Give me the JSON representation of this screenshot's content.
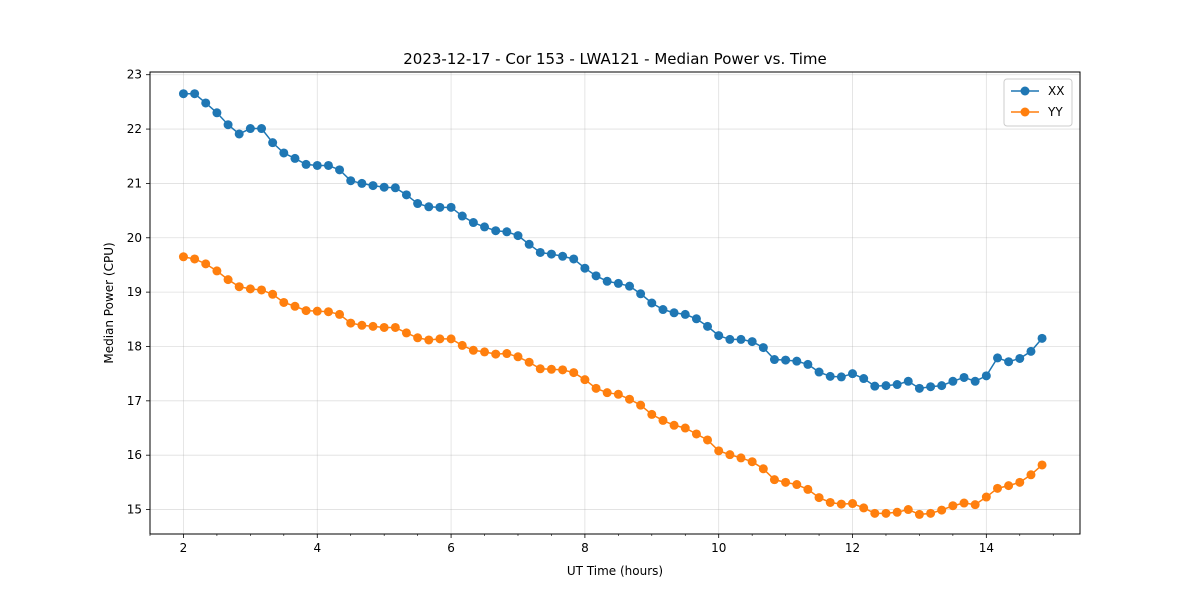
{
  "chart_data": {
    "type": "line",
    "title": "2023-12-17 - Cor 153 - LWA121 - Median Power vs. Time",
    "xlabel": "UT Time (hours)",
    "ylabel": "Median Power (CPU)",
    "xlim": [
      1.5,
      15.4
    ],
    "ylim": [
      14.55,
      23.05
    ],
    "xticks": [
      2,
      4,
      6,
      8,
      10,
      12,
      14
    ],
    "yticks": [
      15,
      16,
      17,
      18,
      19,
      20,
      21,
      22,
      23
    ],
    "grid": true,
    "legend_position": "top-right",
    "x": [
      2.0,
      2.167,
      2.333,
      2.5,
      2.667,
      2.833,
      3.0,
      3.167,
      3.333,
      3.5,
      3.667,
      3.833,
      4.0,
      4.167,
      4.333,
      4.5,
      4.667,
      4.833,
      5.0,
      5.167,
      5.333,
      5.5,
      5.667,
      5.833,
      6.0,
      6.167,
      6.333,
      6.5,
      6.667,
      6.833,
      7.0,
      7.167,
      7.333,
      7.5,
      7.667,
      7.833,
      8.0,
      8.167,
      8.333,
      8.5,
      8.667,
      8.833,
      9.0,
      9.167,
      9.333,
      9.5,
      9.667,
      9.833,
      10.0,
      10.167,
      10.333,
      10.5,
      10.667,
      10.833,
      11.0,
      11.167,
      11.333,
      11.5,
      11.667,
      11.833,
      12.0,
      12.167,
      12.333,
      12.5,
      12.667,
      12.833,
      13.0,
      13.167,
      13.333,
      13.5,
      13.667,
      13.833,
      14.0,
      14.167,
      14.333,
      14.5,
      14.667,
      14.833
    ],
    "series": [
      {
        "name": "XX",
        "color": "#1f77b4",
        "values": [
          22.65,
          22.65,
          22.48,
          22.3,
          22.08,
          21.91,
          22.01,
          22.01,
          21.75,
          21.56,
          21.46,
          21.35,
          21.33,
          21.33,
          21.25,
          21.05,
          21.0,
          20.96,
          20.93,
          20.92,
          20.79,
          20.63,
          20.57,
          20.56,
          20.56,
          20.4,
          20.28,
          20.2,
          20.13,
          20.11,
          20.04,
          19.88,
          19.73,
          19.7,
          19.66,
          19.61,
          19.44,
          19.3,
          19.2,
          19.16,
          19.11,
          18.97,
          18.8,
          18.68,
          18.62,
          18.59,
          18.51,
          18.37,
          18.2,
          18.13,
          18.13,
          18.09,
          17.98,
          17.76,
          17.75,
          17.73,
          17.67,
          17.53,
          17.45,
          17.44,
          17.5,
          17.41,
          17.27,
          17.28,
          17.3,
          17.36,
          17.23,
          17.26,
          17.28,
          17.36,
          17.43,
          17.36,
          17.46,
          17.79,
          17.72,
          17.78,
          17.91,
          18.15
        ]
      },
      {
        "name": "YY",
        "color": "#ff7f0e",
        "values": [
          19.65,
          19.61,
          19.52,
          19.39,
          19.23,
          19.1,
          19.06,
          19.04,
          18.96,
          18.81,
          18.74,
          18.66,
          18.65,
          18.64,
          18.59,
          18.43,
          18.39,
          18.37,
          18.35,
          18.35,
          18.25,
          18.16,
          18.12,
          18.14,
          18.14,
          18.02,
          17.93,
          17.9,
          17.86,
          17.87,
          17.81,
          17.71,
          17.59,
          17.58,
          17.57,
          17.52,
          17.39,
          17.23,
          17.15,
          17.12,
          17.03,
          16.92,
          16.75,
          16.64,
          16.55,
          16.5,
          16.39,
          16.28,
          16.08,
          16.01,
          15.95,
          15.88,
          15.75,
          15.55,
          15.5,
          15.46,
          15.37,
          15.22,
          15.13,
          15.1,
          15.11,
          15.03,
          14.93,
          14.93,
          14.95,
          15.0,
          14.91,
          14.93,
          14.99,
          15.07,
          15.12,
          15.09,
          15.23,
          15.39,
          15.44,
          15.5,
          15.64,
          15.82
        ]
      }
    ]
  }
}
